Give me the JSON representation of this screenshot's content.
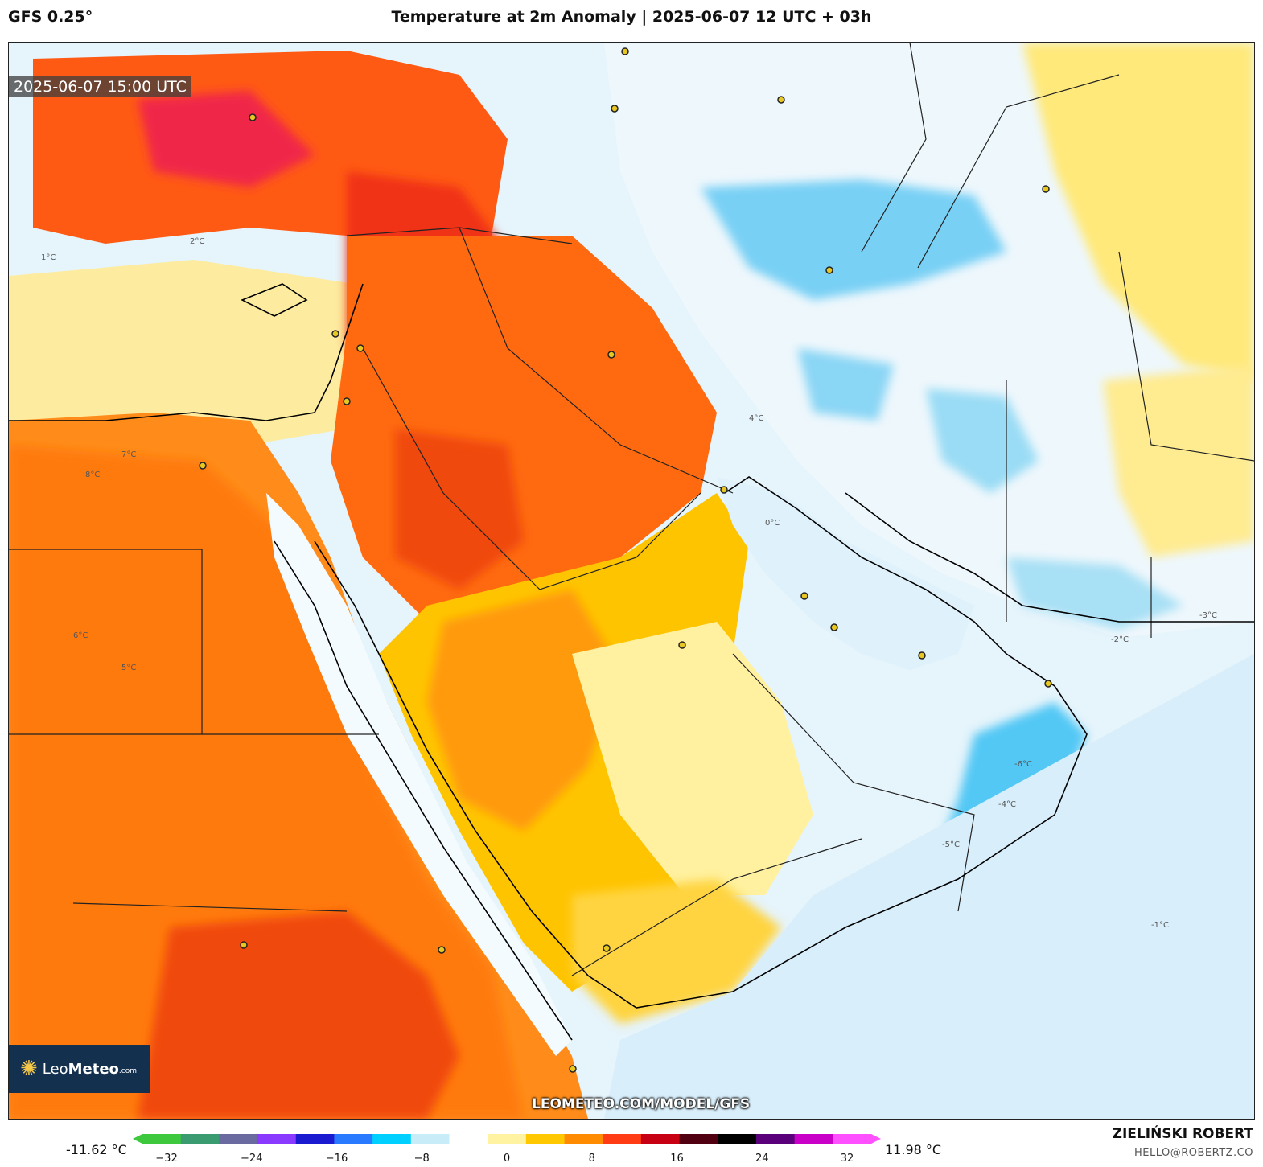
{
  "header": {
    "model": "GFS 0.25°",
    "title": "Temperature at 2m Anomaly | 2025-06-07 12 UTC + 03h"
  },
  "map": {
    "valid_time": "2025-06-07 15:00 UTC",
    "watermark_url": "LEOMETEO.COM/MODEL/GFS",
    "contour_labels": [
      "2°C",
      "1°C",
      "0°C",
      "-1°C",
      "-2°C",
      "-3°C",
      "-4°C",
      "-5°C",
      "-6°C",
      "4°C",
      "5°C",
      "6°C",
      "7°C",
      "8°C"
    ]
  },
  "logo": {
    "text_light": "Leo",
    "text_bold": "Meteo",
    "suffix": ".com"
  },
  "legend": {
    "min_value": "-11.62 °C",
    "max_value": "11.98 °C",
    "ticks": [
      "−32",
      "−24",
      "−16",
      "−8",
      "0",
      "8",
      "16",
      "24",
      "32"
    ],
    "colors": [
      "#3ec83e",
      "#3a9a70",
      "#6a6aa0",
      "#8a3aff",
      "#1a1ad0",
      "#2a7aff",
      "#00d0ff",
      "#c8ecf8",
      "#ffffff",
      "#fff2a0",
      "#ffc800",
      "#ff8c00",
      "#ff3c14",
      "#c80014",
      "#500010",
      "#000000",
      "#5a007a",
      "#c800c8",
      "#ff50ff"
    ]
  },
  "credits": {
    "author": "ZIELIŃSKI ROBERT",
    "email": "HELLO@ROBERTZ.CO"
  }
}
